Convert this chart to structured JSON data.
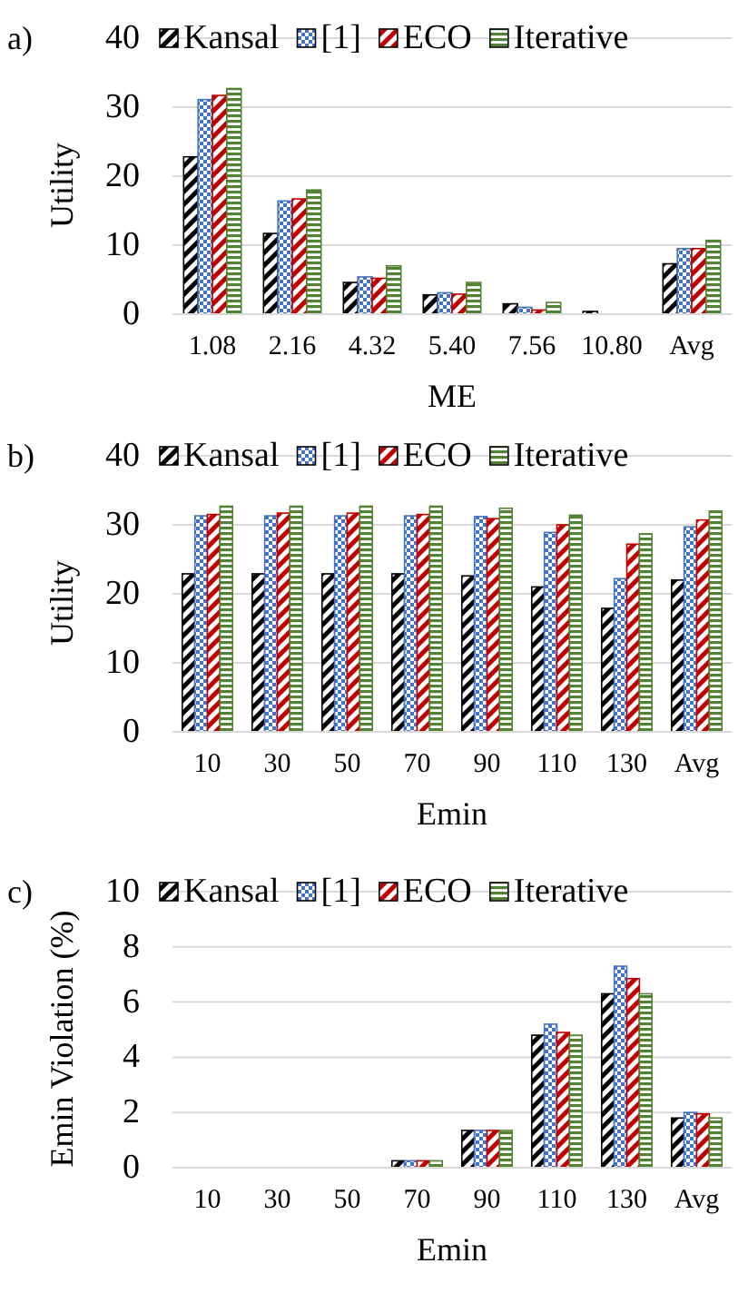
{
  "chart_data": [
    {
      "type": "bar",
      "title": "a)",
      "xlabel": "ME",
      "ylabel": "Utility",
      "categories": [
        "1.08",
        "2.16",
        "4.32",
        "5.40",
        "7.56",
        "10.80",
        "Avg"
      ],
      "ylim": [
        0,
        40
      ],
      "yticks": [
        0,
        10,
        20,
        30,
        40
      ],
      "grid": "y",
      "legend": "top",
      "series": [
        {
          "name": "Kansal",
          "color": "#000000",
          "values": [
            22.8,
            11.7,
            4.6,
            2.8,
            1.5,
            0.4,
            7.3
          ]
        },
        {
          "name": "[1]",
          "color": "#4472c4",
          "values": [
            31.1,
            16.4,
            5.4,
            3.1,
            1.0,
            0,
            9.5
          ]
        },
        {
          "name": "ECO",
          "color": "#c00000",
          "values": [
            31.7,
            16.7,
            5.2,
            2.9,
            0.6,
            0,
            9.5
          ]
        },
        {
          "name": "Iterative",
          "color": "#548235",
          "values": [
            32.7,
            18.0,
            7.0,
            4.6,
            1.7,
            0,
            10.7
          ]
        }
      ]
    },
    {
      "type": "bar",
      "title": "b)",
      "xlabel": "Emin",
      "ylabel": "Utility",
      "categories": [
        "10",
        "30",
        "50",
        "70",
        "90",
        "110",
        "130",
        "Avg"
      ],
      "ylim": [
        0,
        40
      ],
      "yticks": [
        0,
        10,
        20,
        30,
        40
      ],
      "grid": "y",
      "legend": "top",
      "series": [
        {
          "name": "Kansal",
          "color": "#000000",
          "values": [
            22.9,
            22.9,
            22.9,
            22.9,
            22.6,
            21.0,
            17.9,
            22.0
          ]
        },
        {
          "name": "[1]",
          "color": "#4472c4",
          "values": [
            31.3,
            31.3,
            31.3,
            31.3,
            31.2,
            28.9,
            22.2,
            29.7
          ]
        },
        {
          "name": "ECO",
          "color": "#c00000",
          "values": [
            31.5,
            31.7,
            31.7,
            31.5,
            30.9,
            30.0,
            27.2,
            30.7
          ]
        },
        {
          "name": "Iterative",
          "color": "#548235",
          "values": [
            32.7,
            32.7,
            32.7,
            32.7,
            32.4,
            31.4,
            28.7,
            32.0
          ]
        }
      ]
    },
    {
      "type": "bar",
      "title": "c)",
      "xlabel": "Emin",
      "ylabel": "Emin Violation (%)",
      "categories": [
        "10",
        "30",
        "50",
        "70",
        "90",
        "110",
        "130",
        "Avg"
      ],
      "ylim": [
        0,
        10
      ],
      "yticks": [
        0,
        2,
        4,
        6,
        8,
        10
      ],
      "grid": "y",
      "legend": "top",
      "series": [
        {
          "name": "Kansal",
          "color": "#000000",
          "values": [
            0,
            0,
            0,
            0.25,
            1.35,
            4.8,
            6.3,
            1.8
          ]
        },
        {
          "name": "[1]",
          "color": "#4472c4",
          "values": [
            0,
            0,
            0,
            0.25,
            1.35,
            5.2,
            7.3,
            2.0
          ]
        },
        {
          "name": "ECO",
          "color": "#c00000",
          "values": [
            0,
            0,
            0,
            0.25,
            1.35,
            4.9,
            6.85,
            1.95
          ]
        },
        {
          "name": "Iterative",
          "color": "#548235",
          "values": [
            0,
            0,
            0,
            0.25,
            1.35,
            4.8,
            6.3,
            1.8
          ]
        }
      ]
    }
  ]
}
